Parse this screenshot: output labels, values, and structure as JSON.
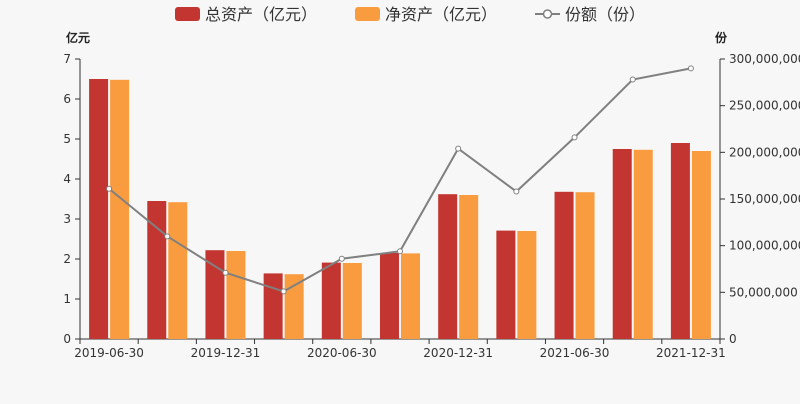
{
  "chart_data": {
    "type": "bar",
    "categories": [
      "2019-06-30",
      "2019-09-30",
      "2019-12-31",
      "2020-03-31",
      "2020-06-30",
      "2020-09-30",
      "2020-12-31",
      "2021-03-31",
      "2021-06-30",
      "2021-09-30",
      "2021-12-31"
    ],
    "x_tick_labels": [
      "2019-06-30",
      "2019-12-31",
      "2020-06-30",
      "2020-12-31",
      "2021-06-30",
      "2021-12-31"
    ],
    "y_left_label": "亿元",
    "y_right_label": "份",
    "y_left_range": [
      0,
      7
    ],
    "y_left_ticks": [
      "0",
      "1",
      "2",
      "3",
      "4",
      "5",
      "6",
      "7"
    ],
    "y_right_range": [
      0,
      300000000
    ],
    "y_right_ticks": [
      "0",
      "50,000,000",
      "100,000,000",
      "150,000,000",
      "200,000,000",
      "250,000,000",
      "300,000,000"
    ],
    "legend_position": "top-center",
    "grid": false,
    "series": [
      {
        "name": "总资产（亿元）",
        "kind": "bar",
        "axis": "left",
        "color": "#c23531",
        "values": [
          6.5,
          3.45,
          2.22,
          1.64,
          1.91,
          2.15,
          3.62,
          2.71,
          3.68,
          4.75,
          4.9
        ]
      },
      {
        "name": "净资产（亿元）",
        "kind": "bar",
        "axis": "left",
        "color": "#f89c3f",
        "values": [
          6.48,
          3.42,
          2.2,
          1.62,
          1.9,
          2.14,
          3.6,
          2.7,
          3.67,
          4.73,
          4.7
        ]
      },
      {
        "name": "份额（份）",
        "kind": "line",
        "axis": "right",
        "color": "#808080",
        "values": [
          161000000,
          110000000,
          71000000,
          51000000,
          86000000,
          94000000,
          204000000,
          158000000,
          216000000,
          278000000,
          290000000
        ]
      }
    ]
  }
}
